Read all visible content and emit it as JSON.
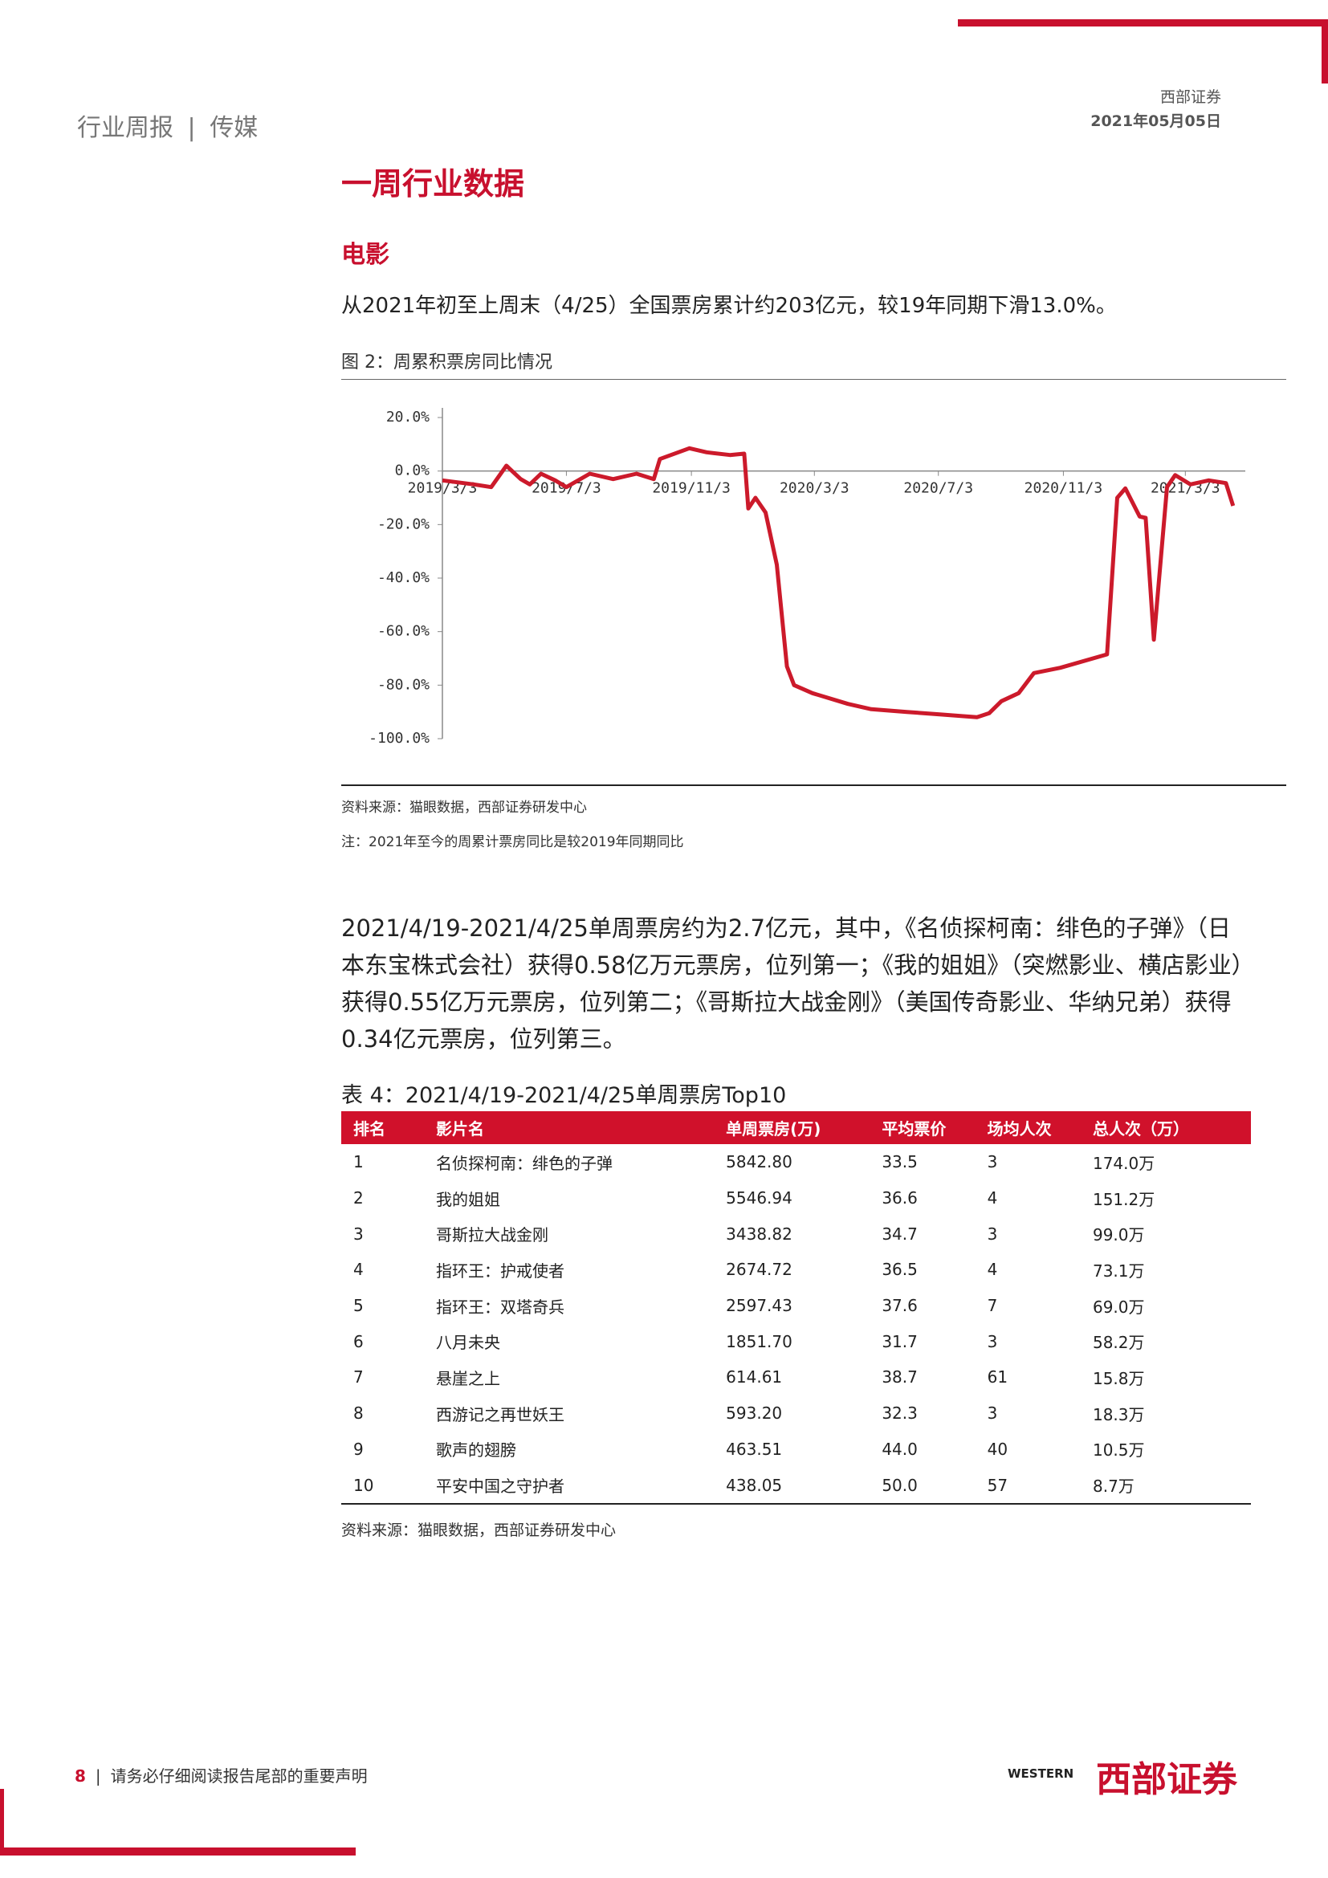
{
  "header": {
    "report": "行业周报",
    "sector": "传媒",
    "company": "西部证券",
    "date": "2021年05月05日"
  },
  "title": "一周行业数据",
  "section": "电影",
  "intro": "从2021年初至上周末（4/25）全国票房累计约203亿元，较19年同期下滑13.0%。",
  "figure": {
    "caption": "图 2：周累积票房同比情况",
    "source": "资料来源：猫眼数据，西部证券研发中心",
    "note": "注：2021年至今的周累计票房同比是较2019年同期同比"
  },
  "chart_data": {
    "type": "line",
    "x": [
      "2019/3/3",
      "2019/4/3",
      "2019/4/20",
      "2019/5/5",
      "2019/5/19",
      "2019/5/28",
      "2019/6/8",
      "2019/6/22",
      "2019/7/3",
      "2019/7/26",
      "2019/8/18",
      "2019/9/10",
      "2019/9/27",
      "2019/10/3",
      "2019/11/1",
      "2019/11/18",
      "2019/12/11",
      "2019/12/25",
      "2019/12/29",
      "2020/1/5",
      "2020/1/15",
      "2020/1/26",
      "2020/2/5",
      "2020/2/12",
      "2020/3/1",
      "2020/4/5",
      "2020/4/28",
      "2020/6/2",
      "2020/7/7",
      "2020/8/10",
      "2020/8/22",
      "2020/9/3",
      "2020/9/20",
      "2020/10/5",
      "2020/10/31",
      "2020/12/16",
      "2020/12/26",
      "2021/1/3",
      "2021/1/17",
      "2021/1/23",
      "2021/1/31",
      "2021/2/13",
      "2021/2/21",
      "2021/3/8",
      "2021/3/26",
      "2021/4/12",
      "2021/4/19"
    ],
    "series": [
      {
        "color": "#cc1a2b",
        "values": [
          -3.5,
          -5,
          -6,
          2,
          -3,
          -5,
          -1,
          -3.5,
          -6,
          -1,
          -3,
          -1,
          -3,
          4.5,
          8.5,
          7,
          6,
          6.5,
          -14,
          -10,
          -15.5,
          -35,
          -73,
          -80,
          -83,
          -87,
          -89,
          -90,
          -91,
          -92,
          -90.5,
          -86,
          -83,
          -75.5,
          -73.5,
          -68.5,
          -10,
          -6.5,
          -17,
          -17.5,
          -63,
          -6,
          -1.5,
          -5,
          -3.5,
          -4.5,
          -13
        ]
      }
    ],
    "xlim": [
      "2019/3/3",
      "2021/5/1"
    ],
    "xticks": [
      "2019/3/3",
      "2019/7/3",
      "2019/11/3",
      "2020/3/3",
      "2020/7/3",
      "2020/11/3",
      "2021/3/3"
    ],
    "ylim": [
      -100,
      20
    ],
    "yticks": [
      {
        "value": 20,
        "label": "20.0%"
      },
      {
        "value": 0,
        "label": "0.0%"
      },
      {
        "value": -20,
        "label": "-20.0%"
      },
      {
        "value": -40,
        "label": "-40.0%"
      },
      {
        "value": -60,
        "label": "-60.0%"
      },
      {
        "value": -80,
        "label": "-80.0%"
      },
      {
        "value": -100,
        "label": "-100.0%"
      }
    ]
  },
  "paragraph": "2021/4/19-2021/4/25单周票房约为2.7亿元，其中，《名侦探柯南：绯色的子弹》（日本东宝株式会社）获得0.58亿万元票房，位列第一；《我的姐姐》（突燃影业、横店影业）获得0.55亿万元票房，位列第二；《哥斯拉大战金刚》（美国传奇影业、华纳兄弟）获得0.34亿元票房，位列第三。",
  "table": {
    "caption": "表 4：2021/4/19-2021/4/25单周票房Top10",
    "header": [
      "排名",
      "影片名",
      "单周票房(万)",
      "平均票价",
      "场均人次",
      "总人次（万）"
    ],
    "rows": [
      [
        "1",
        "名侦探柯南：绯色的子弹",
        "5842.80",
        "33.5",
        "3",
        "174.0万"
      ],
      [
        "2",
        "我的姐姐",
        "5546.94",
        "36.6",
        "4",
        "151.2万"
      ],
      [
        "3",
        "哥斯拉大战金刚",
        "3438.82",
        "34.7",
        "3",
        "99.0万"
      ],
      [
        "4",
        "指环王：护戒使者",
        "2674.72",
        "36.5",
        "4",
        "73.1万"
      ],
      [
        "5",
        "指环王：双塔奇兵",
        "2597.43",
        "37.6",
        "7",
        "69.0万"
      ],
      [
        "6",
        "八月未央",
        "1851.70",
        "31.7",
        "3",
        "58.2万"
      ],
      [
        "7",
        "悬崖之上",
        "614.61",
        "38.7",
        "61",
        "15.8万"
      ],
      [
        "8",
        "西游记之再世妖王",
        "593.20",
        "32.3",
        "3",
        "18.3万"
      ],
      [
        "9",
        "歌声的翅膀",
        "463.51",
        "44.0",
        "40",
        "10.5万"
      ],
      [
        "10",
        "平安中国之守护者",
        "438.05",
        "50.0",
        "57",
        "8.7万"
      ]
    ],
    "source": "资料来源：猫眼数据，西部证券研发中心"
  },
  "footer": {
    "page": "8",
    "disclaimer": "请务必仔细阅读报告尾部的重要声明",
    "logo_en": "WESTERN",
    "logo_cn": "西部证券"
  }
}
